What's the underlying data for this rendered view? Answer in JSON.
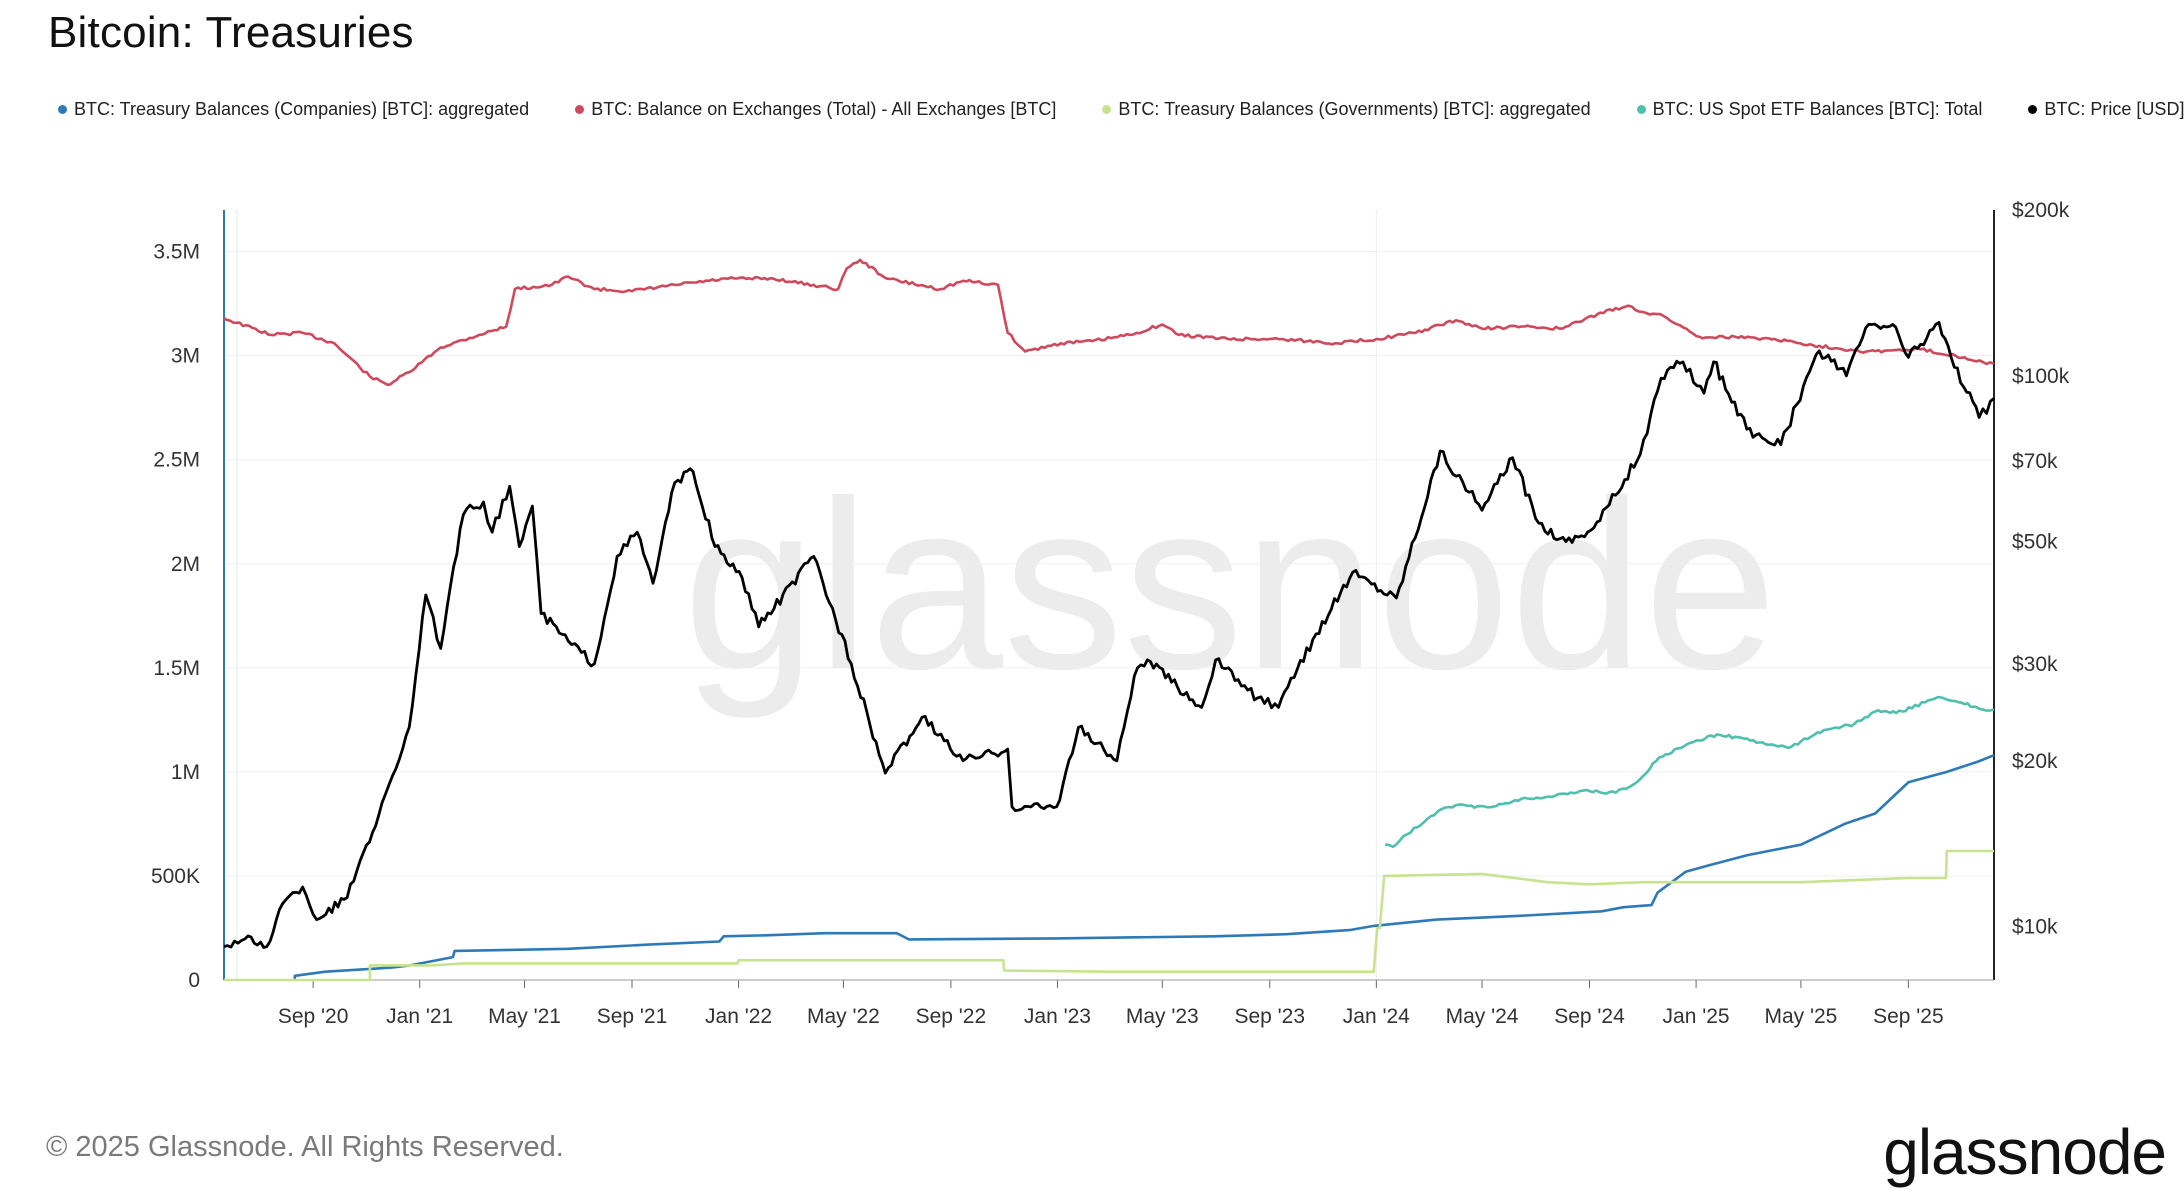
{
  "title": "Bitcoin: Treasuries",
  "footer": {
    "copyright": "© 2025 Glassnode. All Rights Reserved.",
    "logo": "glassnode",
    "watermark": "glassnode"
  },
  "legend": [
    {
      "label": "BTC: Treasury Balances (Companies) [BTC]: aggregated",
      "color": "#2e7ab8"
    },
    {
      "label": "BTC: Balance on Exchanges (Total) - All Exchanges [BTC]",
      "color": "#d0485c"
    },
    {
      "label": "BTC: Treasury Balances (Governments) [BTC]: aggregated",
      "color": "#c8e38f"
    },
    {
      "label": "BTC: US Spot ETF Balances [BTC]: Total",
      "color": "#4fbfae"
    },
    {
      "label": "BTC: Price [USD]",
      "color": "#000000"
    }
  ],
  "chart_data": {
    "type": "line",
    "title": "Bitcoin: Treasuries",
    "x_range": [
      "2020-05-22",
      "2025-12-08"
    ],
    "x_ticks": [
      {
        "label": "Sep '20",
        "date": "2020-09-01"
      },
      {
        "label": "Jan '21",
        "date": "2021-01-01"
      },
      {
        "label": "May '21",
        "date": "2021-05-01"
      },
      {
        "label": "Sep '21",
        "date": "2021-09-01"
      },
      {
        "label": "Jan '22",
        "date": "2022-01-01"
      },
      {
        "label": "May '22",
        "date": "2022-05-01"
      },
      {
        "label": "Sep '22",
        "date": "2022-09-01"
      },
      {
        "label": "Jan '23",
        "date": "2023-01-01"
      },
      {
        "label": "May '23",
        "date": "2023-05-01"
      },
      {
        "label": "Sep '23",
        "date": "2023-09-01"
      },
      {
        "label": "Jan '24",
        "date": "2024-01-01"
      },
      {
        "label": "May '24",
        "date": "2024-05-01"
      },
      {
        "label": "Sep '24",
        "date": "2024-09-01"
      },
      {
        "label": "Jan '25",
        "date": "2025-01-01"
      },
      {
        "label": "May '25",
        "date": "2025-05-01"
      },
      {
        "label": "Sep '25",
        "date": "2025-09-01"
      }
    ],
    "y_left": {
      "unit": "BTC",
      "scale": "linear",
      "ylim": [
        0,
        3700000
      ],
      "ticks": [
        {
          "label": "0",
          "value": 0
        },
        {
          "label": "500K",
          "value": 500000
        },
        {
          "label": "1M",
          "value": 1000000
        },
        {
          "label": "1.5M",
          "value": 1500000
        },
        {
          "label": "2M",
          "value": 2000000
        },
        {
          "label": "2.5M",
          "value": 2500000
        },
        {
          "label": "3M",
          "value": 3000000
        },
        {
          "label": "3.5M",
          "value": 3500000
        }
      ]
    },
    "y_right": {
      "unit": "USD",
      "scale": "log",
      "ylim": [
        8000,
        200000
      ],
      "ticks": [
        {
          "label": "$10k",
          "value": 10000
        },
        {
          "label": "$20k",
          "value": 20000
        },
        {
          "label": "$30k",
          "value": 30000
        },
        {
          "label": "$50k",
          "value": 50000
        },
        {
          "label": "$70k",
          "value": 70000
        },
        {
          "label": "$100k",
          "value": 100000
        },
        {
          "label": "$200k",
          "value": 200000
        }
      ]
    },
    "series": [
      {
        "name": "BTC: Balance on Exchanges (Total) - All Exchanges [BTC]",
        "axis": "left",
        "color": "#d0485c",
        "points": [
          [
            "2020-05-22",
            3180000
          ],
          [
            "2020-07-15",
            3100000
          ],
          [
            "2020-08-20",
            3110000
          ],
          [
            "2020-09-25",
            3060000
          ],
          [
            "2020-11-05",
            2900000
          ],
          [
            "2020-11-25",
            2860000
          ],
          [
            "2020-12-20",
            2920000
          ],
          [
            "2021-01-25",
            3040000
          ],
          [
            "2021-03-10",
            3100000
          ],
          [
            "2021-04-10",
            3140000
          ],
          [
            "2021-04-20",
            3320000
          ],
          [
            "2021-06-01",
            3340000
          ],
          [
            "2021-06-20",
            3380000
          ],
          [
            "2021-07-20",
            3320000
          ],
          [
            "2021-09-01",
            3310000
          ],
          [
            "2021-10-20",
            3340000
          ],
          [
            "2021-12-20",
            3370000
          ],
          [
            "2022-02-10",
            3370000
          ],
          [
            "2022-04-25",
            3320000
          ],
          [
            "2022-05-05",
            3420000
          ],
          [
            "2022-05-20",
            3460000
          ],
          [
            "2022-06-20",
            3370000
          ],
          [
            "2022-08-20",
            3320000
          ],
          [
            "2022-09-15",
            3360000
          ],
          [
            "2022-10-25",
            3340000
          ],
          [
            "2022-11-05",
            3110000
          ],
          [
            "2022-11-25",
            3020000
          ],
          [
            "2023-01-05",
            3060000
          ],
          [
            "2023-02-10",
            3070000
          ],
          [
            "2023-03-25",
            3100000
          ],
          [
            "2023-05-01",
            3150000
          ],
          [
            "2023-05-20",
            3100000
          ],
          [
            "2023-07-15",
            3080000
          ],
          [
            "2023-09-15",
            3080000
          ],
          [
            "2023-11-15",
            3060000
          ],
          [
            "2024-01-01",
            3080000
          ],
          [
            "2024-02-15",
            3110000
          ],
          [
            "2024-04-01",
            3170000
          ],
          [
            "2024-05-01",
            3130000
          ],
          [
            "2024-06-15",
            3140000
          ],
          [
            "2024-08-01",
            3130000
          ],
          [
            "2024-09-10",
            3200000
          ],
          [
            "2024-10-15",
            3240000
          ],
          [
            "2024-11-01",
            3210000
          ],
          [
            "2024-11-25",
            3190000
          ],
          [
            "2025-01-05",
            3090000
          ],
          [
            "2025-02-15",
            3090000
          ],
          [
            "2025-04-01",
            3080000
          ],
          [
            "2025-05-15",
            3050000
          ],
          [
            "2025-07-15",
            3020000
          ],
          [
            "2025-09-15",
            3030000
          ],
          [
            "2025-10-25",
            3000000
          ],
          [
            "2025-11-25",
            2970000
          ],
          [
            "2025-12-08",
            2960000
          ]
        ]
      },
      {
        "name": "BTC: Price [USD]",
        "axis": "right",
        "color": "#000000",
        "points": [
          [
            "2020-05-22",
            9200
          ],
          [
            "2020-06-15",
            9500
          ],
          [
            "2020-07-10",
            9200
          ],
          [
            "2020-07-28",
            11000
          ],
          [
            "2020-08-20",
            11800
          ],
          [
            "2020-09-05",
            10300
          ],
          [
            "2020-10-10",
            11300
          ],
          [
            "2020-10-25",
            13200
          ],
          [
            "2020-11-15",
            15900
          ],
          [
            "2020-12-01",
            18800
          ],
          [
            "2020-12-20",
            23000
          ],
          [
            "2021-01-08",
            40000
          ],
          [
            "2021-01-25",
            32000
          ],
          [
            "2021-02-20",
            56000
          ],
          [
            "2021-03-15",
            59000
          ],
          [
            "2021-03-25",
            52000
          ],
          [
            "2021-04-14",
            63000
          ],
          [
            "2021-04-25",
            49000
          ],
          [
            "2021-05-10",
            58000
          ],
          [
            "2021-05-20",
            37000
          ],
          [
            "2021-06-20",
            33000
          ],
          [
            "2021-07-20",
            30000
          ],
          [
            "2021-08-15",
            47000
          ],
          [
            "2021-09-07",
            52000
          ],
          [
            "2021-09-25",
            42000
          ],
          [
            "2021-10-20",
            64000
          ],
          [
            "2021-11-10",
            67000
          ],
          [
            "2021-12-05",
            49000
          ],
          [
            "2022-01-05",
            43000
          ],
          [
            "2022-01-24",
            35000
          ],
          [
            "2022-03-28",
            47000
          ],
          [
            "2022-05-10",
            30000
          ],
          [
            "2022-06-18",
            19000
          ],
          [
            "2022-07-30",
            24000
          ],
          [
            "2022-09-15",
            20000
          ],
          [
            "2022-11-05",
            21000
          ],
          [
            "2022-11-10",
            16500
          ],
          [
            "2022-12-31",
            16500
          ],
          [
            "2023-01-25",
            23000
          ],
          [
            "2023-03-10",
            20000
          ],
          [
            "2023-03-30",
            28500
          ],
          [
            "2023-04-14",
            30500
          ],
          [
            "2023-06-15",
            25000
          ],
          [
            "2023-07-01",
            30500
          ],
          [
            "2023-08-18",
            26000
          ],
          [
            "2023-09-11",
            25000
          ],
          [
            "2023-10-24",
            34000
          ],
          [
            "2023-12-05",
            44000
          ],
          [
            "2024-01-24",
            39500
          ],
          [
            "2024-03-14",
            73000
          ],
          [
            "2024-05-01",
            57000
          ],
          [
            "2024-06-05",
            71000
          ],
          [
            "2024-07-05",
            54000
          ],
          [
            "2024-08-05",
            50000
          ],
          [
            "2024-09-06",
            53000
          ],
          [
            "2024-10-29",
            72000
          ],
          [
            "2024-11-22",
            99000
          ],
          [
            "2024-12-17",
            106000
          ],
          [
            "2025-01-10",
            93000
          ],
          [
            "2025-01-21",
            106000
          ],
          [
            "2025-02-28",
            80000
          ],
          [
            "2025-04-08",
            75000
          ],
          [
            "2025-05-22",
            111000
          ],
          [
            "2025-06-22",
            100000
          ],
          [
            "2025-07-14",
            122000
          ],
          [
            "2025-08-14",
            124000
          ],
          [
            "2025-09-01",
            108000
          ],
          [
            "2025-10-06",
            125000
          ],
          [
            "2025-10-20",
            108000
          ],
          [
            "2025-11-21",
            84000
          ],
          [
            "2025-12-08",
            91000
          ]
        ]
      },
      {
        "name": "BTC: US Spot ETF Balances [BTC]: Total",
        "axis": "left",
        "color": "#4fbfae",
        "points": [
          [
            "2024-01-11",
            650000
          ],
          [
            "2024-01-20",
            640000
          ],
          [
            "2024-02-05",
            700000
          ],
          [
            "2024-02-25",
            760000
          ],
          [
            "2024-03-15",
            820000
          ],
          [
            "2024-04-01",
            840000
          ],
          [
            "2024-05-10",
            830000
          ],
          [
            "2024-06-15",
            870000
          ],
          [
            "2024-07-20",
            880000
          ],
          [
            "2024-08-25",
            910000
          ],
          [
            "2024-10-01",
            900000
          ],
          [
            "2024-10-25",
            950000
          ],
          [
            "2024-11-20",
            1070000
          ],
          [
            "2024-12-25",
            1140000
          ],
          [
            "2025-01-25",
            1180000
          ],
          [
            "2025-02-25",
            1160000
          ],
          [
            "2025-03-25",
            1130000
          ],
          [
            "2025-04-20",
            1120000
          ],
          [
            "2025-05-20",
            1190000
          ],
          [
            "2025-07-01",
            1230000
          ],
          [
            "2025-07-25",
            1290000
          ],
          [
            "2025-08-25",
            1290000
          ],
          [
            "2025-10-05",
            1360000
          ],
          [
            "2025-10-25",
            1340000
          ],
          [
            "2025-11-25",
            1300000
          ],
          [
            "2025-12-08",
            1300000
          ]
        ]
      },
      {
        "name": "BTC: Treasury Balances (Companies) [BTC]: aggregated",
        "axis": "left",
        "color": "#2e7ab8",
        "points": [
          [
            "2020-08-11",
            0
          ],
          [
            "2020-08-11",
            20000
          ],
          [
            "2020-09-15",
            40000
          ],
          [
            "2020-12-01",
            60000
          ],
          [
            "2020-12-21",
            70000
          ],
          [
            "2021-02-08",
            110000
          ],
          [
            "2021-02-10",
            140000
          ],
          [
            "2021-06-20",
            150000
          ],
          [
            "2021-09-20",
            170000
          ],
          [
            "2021-12-10",
            185000
          ],
          [
            "2021-12-15",
            210000
          ],
          [
            "2022-02-01",
            215000
          ],
          [
            "2022-04-10",
            225000
          ],
          [
            "2022-07-01",
            225000
          ],
          [
            "2022-07-15",
            195000
          ],
          [
            "2022-12-30",
            200000
          ],
          [
            "2023-06-30",
            210000
          ],
          [
            "2023-09-20",
            220000
          ],
          [
            "2023-12-01",
            240000
          ],
          [
            "2023-12-29",
            260000
          ],
          [
            "2024-03-10",
            290000
          ],
          [
            "2024-05-01",
            300000
          ],
          [
            "2024-06-20",
            310000
          ],
          [
            "2024-09-15",
            330000
          ],
          [
            "2024-10-10",
            350000
          ],
          [
            "2024-11-11",
            360000
          ],
          [
            "2024-11-18",
            420000
          ],
          [
            "2024-12-20",
            520000
          ],
          [
            "2025-01-15",
            550000
          ],
          [
            "2025-03-01",
            600000
          ],
          [
            "2025-05-01",
            650000
          ],
          [
            "2025-06-20",
            750000
          ],
          [
            "2025-07-25",
            800000
          ],
          [
            "2025-09-01",
            950000
          ],
          [
            "2025-10-15",
            1000000
          ],
          [
            "2025-11-20",
            1050000
          ],
          [
            "2025-12-08",
            1080000
          ]
        ]
      },
      {
        "name": "BTC: Treasury Balances (Governments) [BTC]: aggregated",
        "axis": "left",
        "color": "#c8e38f",
        "points": [
          [
            "2020-05-22",
            0
          ],
          [
            "2020-11-05",
            0
          ],
          [
            "2020-11-05",
            70000
          ],
          [
            "2021-01-15",
            70000
          ],
          [
            "2021-02-20",
            80000
          ],
          [
            "2021-12-31",
            80000
          ],
          [
            "2022-01-01",
            95000
          ],
          [
            "2022-10-31",
            95000
          ],
          [
            "2022-11-01",
            45000
          ],
          [
            "2023-03-01",
            40000
          ],
          [
            "2023-12-29",
            40000
          ],
          [
            "2024-01-02",
            250000
          ],
          [
            "2024-01-05",
            250000
          ],
          [
            "2024-01-10",
            500000
          ],
          [
            "2024-05-01",
            510000
          ],
          [
            "2024-07-15",
            470000
          ],
          [
            "2024-09-01",
            460000
          ],
          [
            "2024-11-01",
            470000
          ],
          [
            "2025-05-01",
            470000
          ],
          [
            "2025-09-01",
            490000
          ],
          [
            "2025-10-14",
            490000
          ],
          [
            "2025-10-15",
            620000
          ],
          [
            "2025-12-08",
            620000
          ]
        ]
      }
    ]
  }
}
